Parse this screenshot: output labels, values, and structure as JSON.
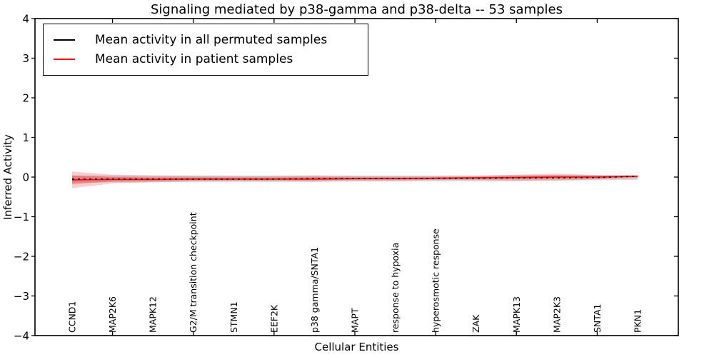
{
  "title": "Signaling mediated by p38-gamma and p38-delta -- 53 samples",
  "legend": {
    "items": [
      {
        "label": "Mean activity in all permuted samples",
        "color": "#000000"
      },
      {
        "label": "Mean activity in patient samples",
        "color": "#ff0000"
      }
    ]
  },
  "chart_data": {
    "type": "line",
    "title": "Signaling mediated by p38-gamma and p38-delta -- 53 samples",
    "xlabel": "Cellular Entities",
    "ylabel": "Inferred Activity",
    "ylim": [
      -4,
      4
    ],
    "ytick_values": [
      4,
      3,
      2,
      1,
      0,
      -1,
      -2,
      -3,
      -4
    ],
    "ytick_labels": [
      "4",
      "3",
      "2",
      "1",
      "0",
      "−1",
      "−2",
      "−3",
      "−4"
    ],
    "grid": false,
    "legend_position": "upper left",
    "categories": [
      "CCND1",
      "MAP2K6",
      "MAPK12",
      "G2/M transition checkpoint",
      "STMN1",
      "EEF2K",
      "p38 gamma/SNTA1",
      "MAPT",
      "response to hypoxia",
      "hyperosmotic response",
      "ZAK",
      "MAPK13",
      "MAP2K3",
      "SNTA1",
      "PKN1"
    ],
    "series": [
      {
        "name": "Mean activity in all permuted samples",
        "color": "#000000",
        "style": "dashed",
        "values": [
          -0.05,
          -0.05,
          -0.05,
          -0.05,
          -0.05,
          -0.05,
          -0.04,
          -0.04,
          -0.04,
          -0.03,
          -0.03,
          -0.02,
          -0.02,
          -0.01,
          0.02
        ]
      },
      {
        "name": "Mean activity in patient samples",
        "color": "#ff0000",
        "style": "solid",
        "values": [
          -0.07,
          -0.06,
          -0.06,
          -0.05,
          -0.05,
          -0.05,
          -0.05,
          -0.04,
          -0.04,
          -0.03,
          -0.02,
          -0.01,
          0.0,
          0.0,
          0.02
        ]
      }
    ],
    "bands": [
      {
        "name": "permuted-samples-band",
        "color": "rgba(130,130,130,0.30)",
        "upper": [
          0.04,
          0.04,
          0.04,
          0.04,
          0.04,
          0.04,
          0.04,
          0.04,
          0.04,
          0.04,
          0.04,
          0.05,
          0.05,
          0.05,
          0.05
        ],
        "lower": [
          -0.14,
          -0.13,
          -0.13,
          -0.12,
          -0.12,
          -0.12,
          -0.12,
          -0.11,
          -0.11,
          -0.1,
          -0.1,
          -0.1,
          -0.09,
          -0.08,
          -0.07
        ]
      },
      {
        "name": "patient-samples-band-outer",
        "color": "rgba(230,30,40,0.22)",
        "upper": [
          0.14,
          0.06,
          0.04,
          0.03,
          0.02,
          0.02,
          0.04,
          0.02,
          0.02,
          0.02,
          0.03,
          0.06,
          0.09,
          0.05,
          0.04
        ],
        "lower": [
          -0.28,
          -0.16,
          -0.13,
          -0.11,
          -0.1,
          -0.1,
          -0.11,
          -0.09,
          -0.09,
          -0.08,
          -0.08,
          -0.09,
          -0.08,
          -0.06,
          -0.03
        ]
      },
      {
        "name": "patient-samples-band-inner",
        "color": "rgba(230,30,40,0.33)",
        "upper": [
          0.04,
          0.0,
          -0.01,
          -0.01,
          -0.015,
          -0.015,
          -0.005,
          -0.01,
          -0.01,
          -0.005,
          0.005,
          0.025,
          0.045,
          0.025,
          0.03
        ],
        "lower": [
          -0.18,
          -0.11,
          -0.095,
          -0.08,
          -0.075,
          -0.075,
          -0.08,
          -0.065,
          -0.065,
          -0.055,
          -0.05,
          -0.05,
          -0.04,
          -0.03,
          -0.005
        ]
      }
    ]
  }
}
